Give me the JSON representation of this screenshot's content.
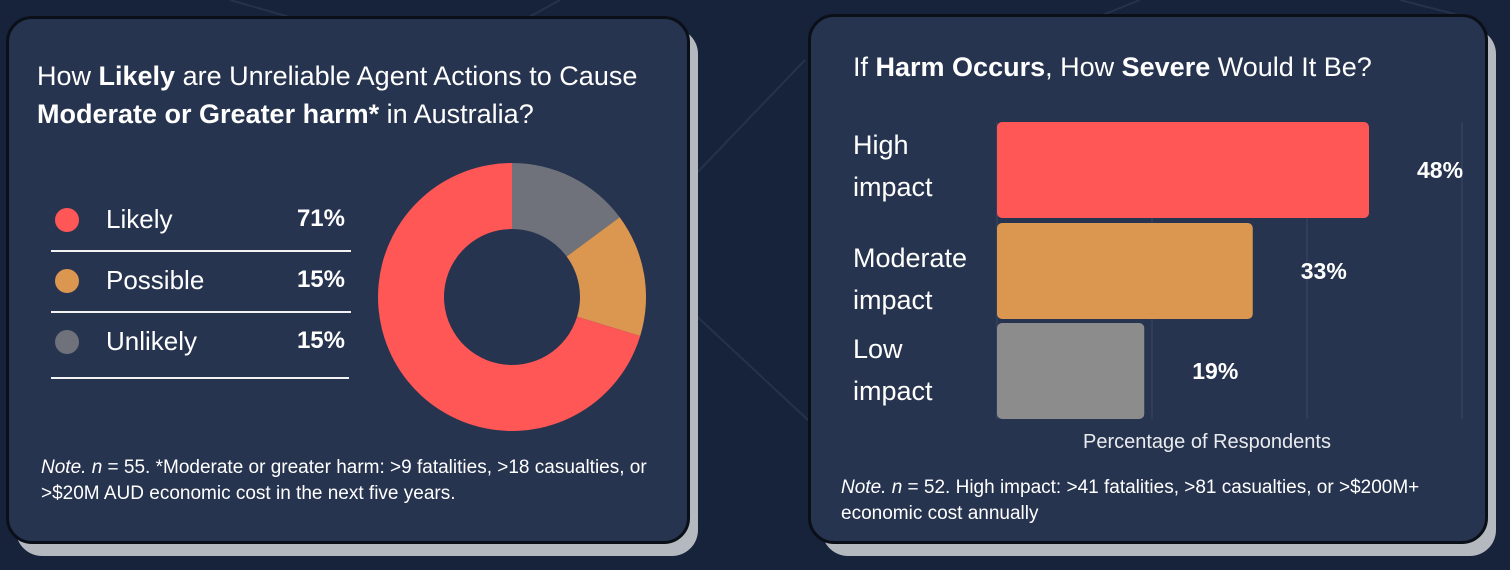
{
  "colors": {
    "likely": "#ff5656",
    "possible": "#db9650",
    "unlikely": "#6f727a",
    "high": "#ff5656",
    "moderate": "#db9650",
    "low": "#8c8c8c"
  },
  "left_card": {
    "title_parts": [
      "How ",
      "Likely",
      " are Unreliable Agent Actions to Cause ",
      "Moderate or Greater harm*",
      " in Australia?"
    ],
    "note_prefix": "Note. n",
    "note_text": " = 55. *Moderate or greater harm: >9 fatalities, >18 casualties, or >$20M AUD economic cost in the next five years."
  },
  "right_card": {
    "title_parts": [
      "If ",
      "Harm Occurs",
      ", How ",
      "Severe",
      " Would It Be?"
    ],
    "note_prefix": "Note. n",
    "note_text": " = 52. High impact: >41 fatalities, >81 casualties, or >$200M+ economic cost annually"
  },
  "chart_data": [
    {
      "type": "pie",
      "style": "donut",
      "categories": [
        "Likely",
        "Possible",
        "Unlikely"
      ],
      "values": [
        71,
        15,
        15
      ],
      "value_labels": [
        "71%",
        "15%",
        "15%"
      ],
      "legend_placement": "left"
    },
    {
      "type": "bar",
      "orientation": "horizontal",
      "categories": [
        "High impact",
        "Moderate impact",
        "Low impact"
      ],
      "category_lines": [
        [
          "High",
          "impact"
        ],
        [
          "Moderate",
          "impact"
        ],
        [
          "Low",
          "impact"
        ]
      ],
      "values": [
        48,
        33,
        19
      ],
      "value_labels": [
        "48%",
        "33%",
        "19%"
      ],
      "xlabel": "Percentage of Respondents",
      "xlim": [
        0,
        60
      ],
      "grid": true
    }
  ]
}
